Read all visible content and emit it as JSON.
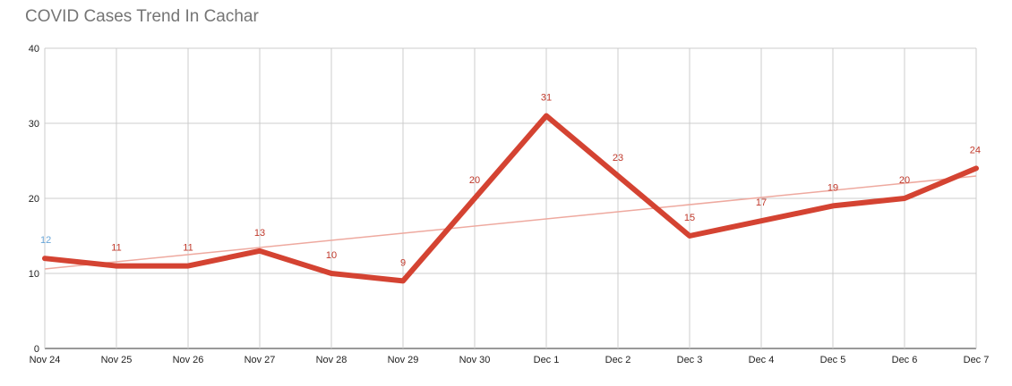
{
  "chart_data": {
    "type": "line",
    "title": "COVID Cases Trend In Cachar",
    "xlabel": "",
    "ylabel": "",
    "categories": [
      "Nov 24",
      "Nov 25",
      "Nov 26",
      "Nov 27",
      "Nov 28",
      "Nov 29",
      "Nov 30",
      "Dec 1",
      "Dec 2",
      "Dec 3",
      "Dec 4",
      "Dec 5",
      "Dec 6",
      "Dec 7"
    ],
    "series": [
      {
        "values": [
          12,
          11,
          11,
          13,
          10,
          9,
          20,
          31,
          23,
          15,
          17,
          19,
          20,
          24
        ],
        "color": "#d44332"
      }
    ],
    "trendline": {
      "type": "linear",
      "color": "#eea99f"
    },
    "ylim": [
      0,
      40
    ],
    "yticks": [
      0,
      10,
      20,
      30,
      40
    ],
    "grid": true,
    "data_labels": true,
    "first_label_color": "#6aa6d8",
    "label_color": "#c0392b",
    "legend": "none"
  }
}
